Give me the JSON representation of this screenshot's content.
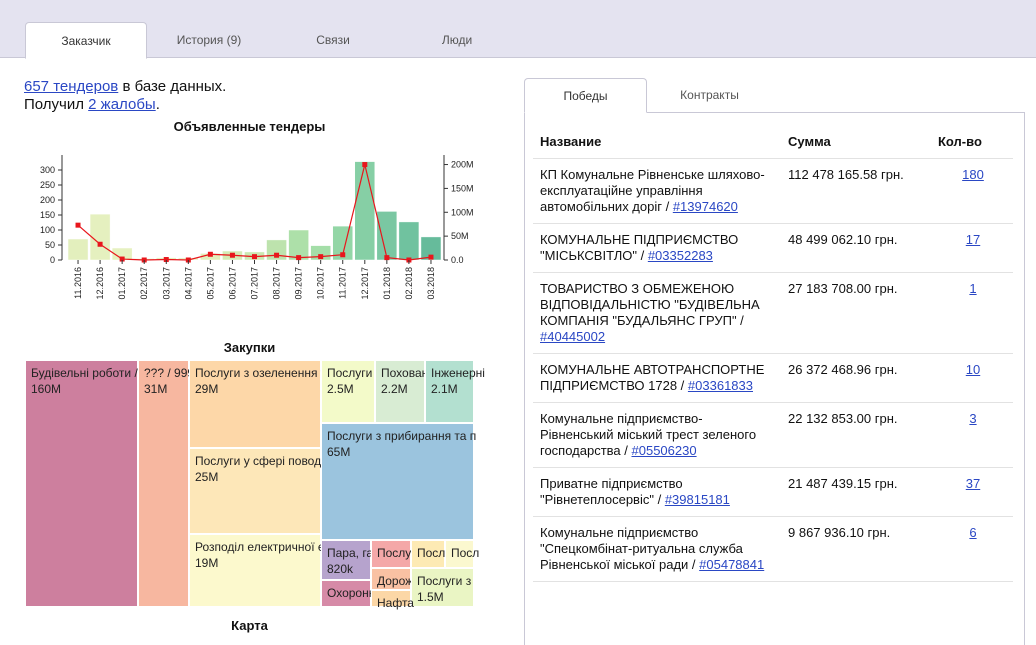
{
  "top_tabs": [
    {
      "label": "Заказчик",
      "active": true
    },
    {
      "label": "История (9)",
      "active": false
    },
    {
      "label": "Связи",
      "active": false
    },
    {
      "label": "Люди",
      "active": false
    }
  ],
  "summary": {
    "tenders_link": "657 тендеров",
    "tenders_suffix": " в базе данных.",
    "complaints_prefix": "Получил ",
    "complaints_link": "2 жалобы",
    "complaints_suffix": "."
  },
  "chart_data": {
    "type": "bar",
    "title": "Объявленные тендеры",
    "categories": [
      "11.2016",
      "12.2016",
      "01.2017",
      "02.2017",
      "03.2017",
      "04.2017",
      "05.2017",
      "06.2017",
      "07.2017",
      "08.2017",
      "09.2017",
      "10.2017",
      "11.2017",
      "12.2017",
      "01.2018",
      "02.2018",
      "03.2018"
    ],
    "series": [
      {
        "values": [
          70,
          153,
          40,
          5,
          8,
          7,
          22,
          30,
          27,
          67,
          100,
          48,
          113,
          328,
          162,
          127,
          77
        ],
        "colors": [
          "#e3efbd",
          "#e5f0bf",
          "#e6f1c0",
          "#e6f1c0",
          "#e6f1c0",
          "#e7f1c1",
          "#e2efbb",
          "#d4ebb5",
          "#cbe8b2",
          "#bde3ad",
          "#ade0a9",
          "#a4dea8",
          "#93d6a6",
          "#86cfa5",
          "#7ac7a2",
          "#70c29f",
          "#66bb9b"
        ]
      },
      {
        "values": [
          73,
          33,
          2,
          0,
          1,
          0,
          12,
          10,
          7,
          10,
          5,
          7,
          11,
          200,
          5,
          0,
          6
        ],
        "color": "#e8161c"
      }
    ],
    "ylim": [
      0,
      350
    ],
    "y_ticks": [
      "0",
      "50",
      "100",
      "150",
      "200",
      "250",
      "300"
    ],
    "y2lim": [
      0,
      220
    ],
    "y2_ticks": [
      "0.0",
      "50M",
      "100M",
      "150M",
      "200M"
    ]
  },
  "purchases": {
    "title": "Закупки",
    "cells": [
      {
        "label": "Будівельні роботи / ...",
        "value": "160M",
        "color": "#cd7f9e"
      },
      {
        "label": "??? / 999",
        "value": "31M",
        "color": "#f7b7a0"
      },
      {
        "label": "Послуги з озеленення т",
        "value": "29M",
        "color": "#fdd7a8"
      },
      {
        "label": "Послуги у сфері поводж",
        "value": "25M",
        "color": "#fde7b8"
      },
      {
        "label": "Розподіл електричної е",
        "value": "19M",
        "color": "#fcf9cd"
      },
      {
        "label": "Послуги",
        "value": "2.5M",
        "color": "#f3fac9"
      },
      {
        "label": "Поховання",
        "value": "2.2M",
        "color": "#d8ecd3"
      },
      {
        "label": "Інженерні",
        "value": "2.1M",
        "color": "#b3e0d0"
      },
      {
        "label": "Послуги з прибирання та п",
        "value": "65M",
        "color": "#9bc4de"
      },
      {
        "label": "Пара, га",
        "value": "820k",
        "color": "#b6a3cd"
      },
      {
        "label": "Послуги",
        "value": "",
        "color": "#f4a8a8"
      },
      {
        "label": "Посл",
        "value": "",
        "color": "#fdeab4"
      },
      {
        "label": "Посл",
        "value": "",
        "color": "#fbf8cf"
      },
      {
        "label": "Дорож",
        "value": "",
        "color": "#f9c1a3"
      },
      {
        "label": "Послуги з",
        "value": "1.5M",
        "color": "#eaf5c4"
      },
      {
        "label": "Охоронн",
        "value": "",
        "color": "#d68aa7"
      },
      {
        "label": "Нафта",
        "value": "",
        "color": "#fcd7a6"
      }
    ]
  },
  "map_title": "Карта",
  "panel_tabs": [
    {
      "label": "Победы",
      "active": true
    },
    {
      "label": "Контракты",
      "active": false
    }
  ],
  "table": {
    "headers": [
      "Название",
      "Сумма",
      "Кол-во"
    ],
    "rows": [
      {
        "name": "КП Комунальне Рівненське шляхово-експлуатаційне управління автомобільних доріг / ",
        "code": "#13974620",
        "sum": "112 478 165.58 грн.",
        "count": "180"
      },
      {
        "name": "КОМУНАЛЬНЕ ПІДПРИЄМСТВО \"МІСЬКСВІТЛО\" / ",
        "code": "#03352283",
        "sum": "48 499 062.10 грн.",
        "count": "17"
      },
      {
        "name": "ТОВАРИСТВО З ОБМЕЖЕНОЮ ВІДПОВІДАЛЬНІСТЮ \"БУДІВЕЛЬНА КОМПАНІЯ \"БУДАЛЬЯНС ГРУП\" / ",
        "code": "#40445002",
        "sum": "27 183 708.00 грн.",
        "count": "1"
      },
      {
        "name": "КОМУНАЛЬНЕ АВТОТРАНСПОРТНЕ ПІДПРИЄМСТВО 1728 / ",
        "code": "#03361833",
        "sum": "26 372 468.96 грн.",
        "count": "10"
      },
      {
        "name": "Комунальне підприємство-Рівненський міський трест зеленого господарства / ",
        "code": "#05506230",
        "sum": "22 132 853.00 грн.",
        "count": "3"
      },
      {
        "name": "Приватне підприємство \"Рівнетеплосервіс\" / ",
        "code": "#39815181",
        "sum": "21 487 439.15 грн.",
        "count": "37"
      },
      {
        "name": "Комунальне підприємство \"Спецкомбінат-ритуальна служба Рівненської міської ради / ",
        "code": "#05478841",
        "sum": "9 867 936.10 грн.",
        "count": "6"
      }
    ]
  }
}
